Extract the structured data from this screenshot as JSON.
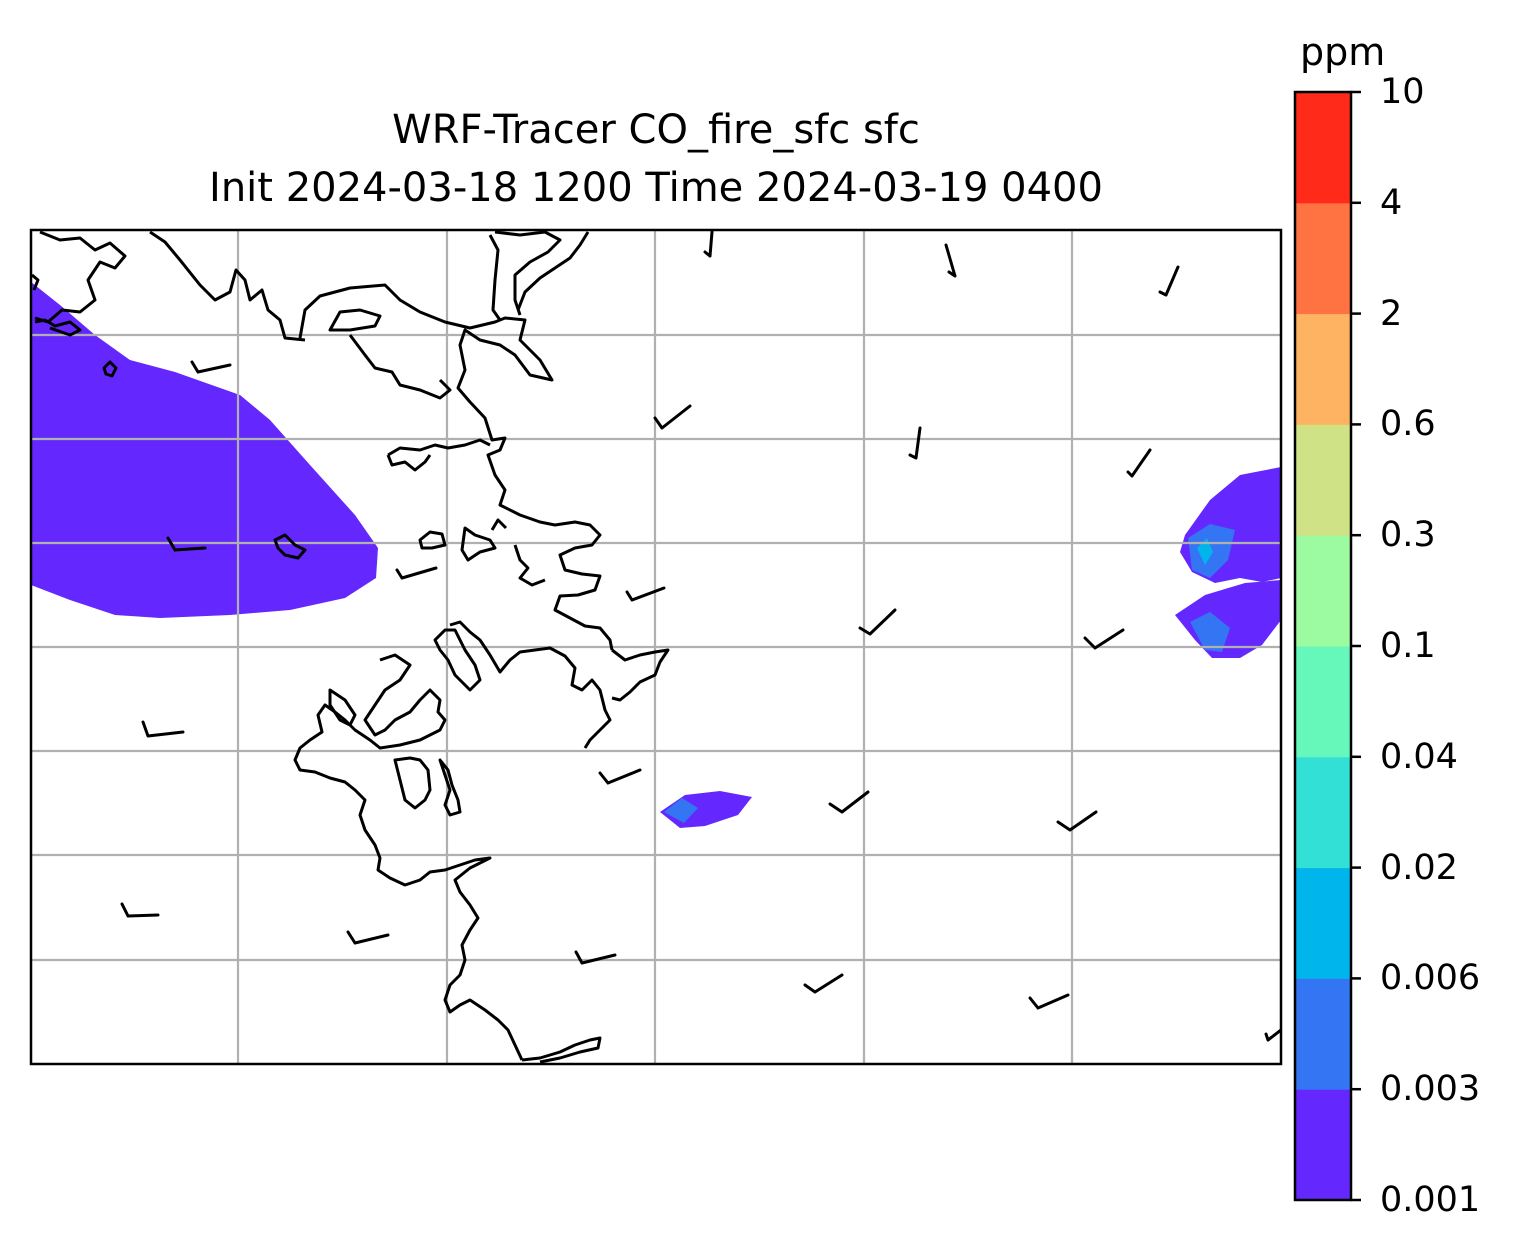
{
  "map": {
    "title_line1": "WRF-Tracer CO_fire_sfc sfc",
    "title_line2": "Init 2024-03-18 1200 Time 2024-03-19 0400",
    "field": "CO_fire_sfc",
    "level": "sfc",
    "init_time": "2024-03-18 1200",
    "valid_time": "2024-03-19 0400",
    "gridlines": true,
    "features": [
      "coastline",
      "wind-barbs",
      "tracer-contours"
    ]
  },
  "colorbar": {
    "unit": "ppm",
    "levels": [
      "0.001",
      "0.003",
      "0.006",
      "0.02",
      "0.04",
      "0.1",
      "0.3",
      "0.6",
      "2",
      "4",
      "10"
    ],
    "colors": [
      "#6428fe",
      "#3475f3",
      "#00b5eb",
      "#32e0d6",
      "#66f7bb",
      "#9cfba0",
      "#d0e286",
      "#feb363",
      "#ff7342",
      "#ff2a1a"
    ]
  }
}
